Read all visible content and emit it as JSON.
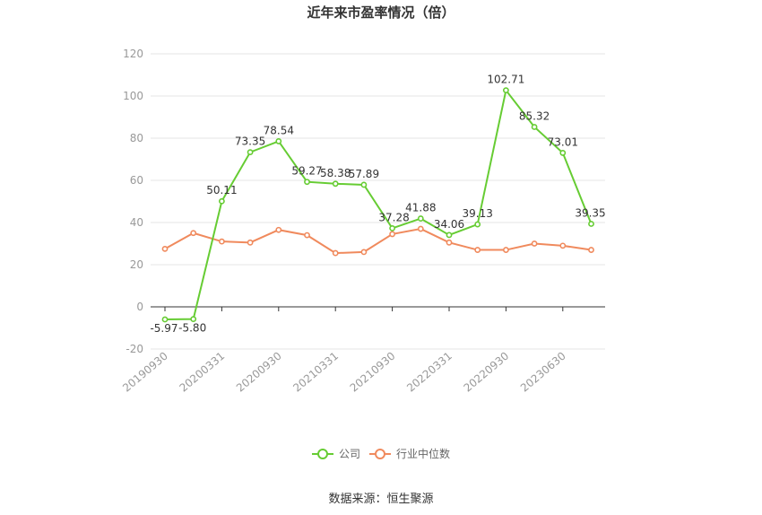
{
  "chart_data": {
    "type": "line",
    "title": "近年来市盈率情况（倍）",
    "source": "数据来源：恒生聚源",
    "ylim": [
      -20,
      120
    ],
    "yticks": [
      "-20",
      "0",
      "20",
      "40",
      "60",
      "80",
      "100",
      "120"
    ],
    "grid": true,
    "legend_position": "bottom",
    "x_tick_labels": [
      "20190930",
      "20200331",
      "20200930",
      "20210331",
      "20210930",
      "20220331",
      "20220930",
      "20230630"
    ],
    "series": [
      {
        "name": "公司",
        "color": "#66cc33",
        "values": [
          -5.97,
          -5.8,
          50.11,
          73.35,
          78.54,
          59.27,
          58.38,
          57.89,
          37.28,
          41.88,
          34.06,
          39.13,
          102.71,
          85.32,
          73.01,
          39.35
        ],
        "labels": [
          "-5.97",
          "-5.80",
          "50.11",
          "73.35",
          "78.54",
          "59.27",
          "58.38",
          "57.89",
          "37.28",
          "41.88",
          "34.06",
          "39.13",
          "102.71",
          "85.32",
          "73.01",
          "39.35"
        ]
      },
      {
        "name": "行业中位数",
        "color": "#f08a5d",
        "values": [
          27.5,
          35,
          31,
          30.5,
          36.5,
          34,
          25.5,
          26,
          34.5,
          37,
          30.5,
          27,
          27,
          30,
          29,
          27
        ]
      }
    ]
  }
}
